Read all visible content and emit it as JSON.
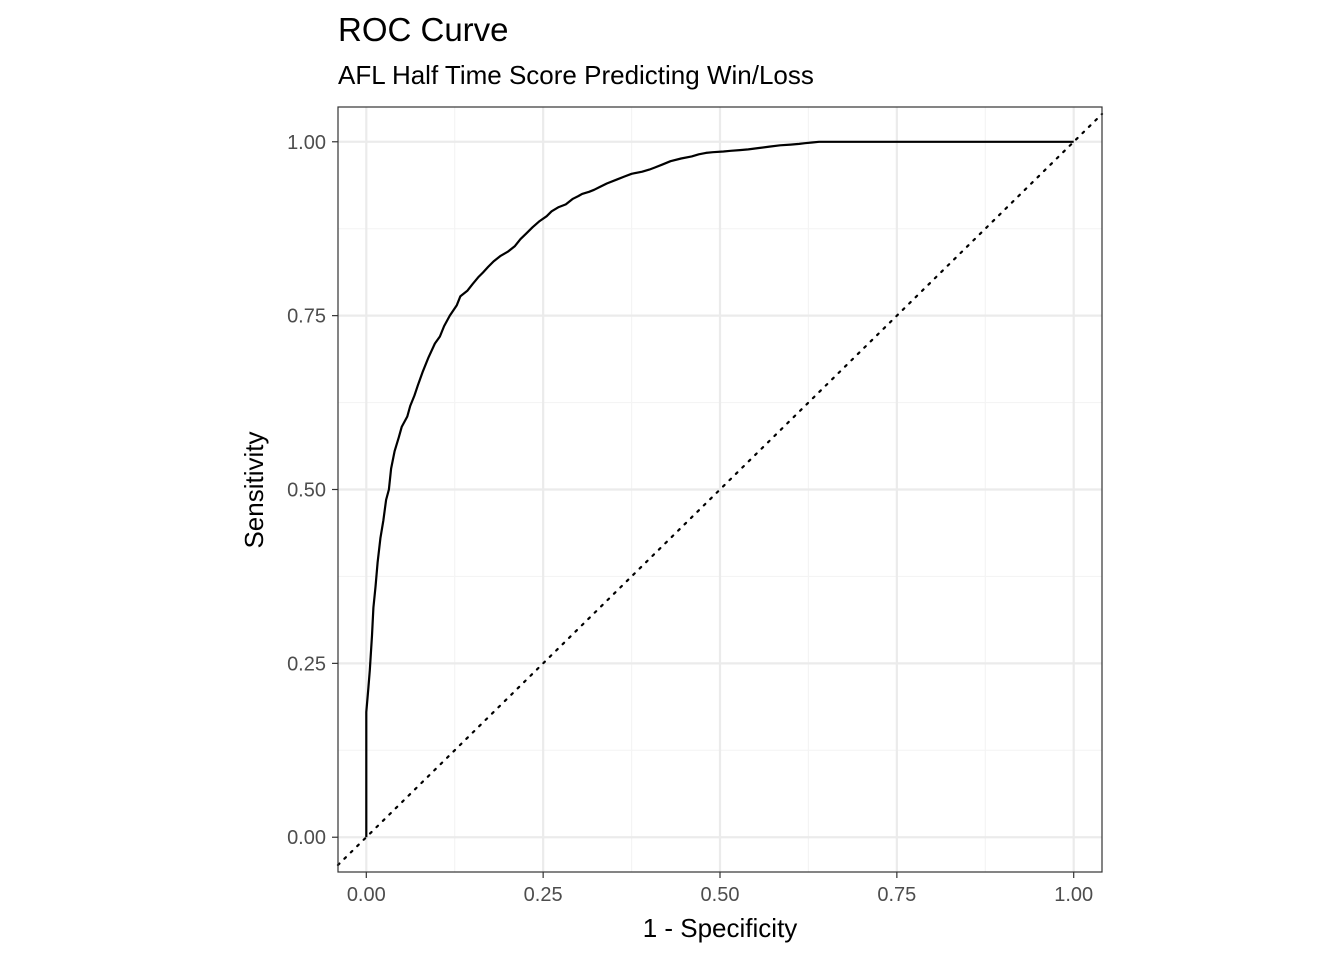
{
  "chart_data": {
    "type": "line",
    "title": "ROC Curve",
    "subtitle": "AFL Half Time Score Predicting Win/Loss",
    "xlabel": "1 - Specificity",
    "ylabel": "Sensitivity",
    "xlim": [
      -0.04,
      1.04
    ],
    "ylim": [
      -0.05,
      1.05
    ],
    "x_ticks": [
      "0.00",
      "0.25",
      "0.50",
      "0.75",
      "1.00"
    ],
    "y_ticks": [
      "0.00",
      "0.25",
      "0.50",
      "0.75",
      "1.00"
    ],
    "grid": true,
    "legend": "none",
    "series": [
      {
        "style": "solid",
        "color": "#000000",
        "x": [
          0.0,
          0.0,
          0.0,
          0.003,
          0.005,
          0.008,
          0.01,
          0.013,
          0.016,
          0.02,
          0.024,
          0.028,
          0.032,
          0.035,
          0.04,
          0.046,
          0.05,
          0.058,
          0.062,
          0.068,
          0.073,
          0.08,
          0.088,
          0.097,
          0.104,
          0.11,
          0.118,
          0.128,
          0.133,
          0.143,
          0.15,
          0.158,
          0.165,
          0.172,
          0.18,
          0.19,
          0.2,
          0.21,
          0.218,
          0.226,
          0.235,
          0.245,
          0.255,
          0.262,
          0.272,
          0.282,
          0.292,
          0.3,
          0.305,
          0.315,
          0.322,
          0.33,
          0.34,
          0.355,
          0.365,
          0.375,
          0.39,
          0.4,
          0.408,
          0.418,
          0.43,
          0.445,
          0.46,
          0.47,
          0.48,
          0.49,
          0.505,
          0.515,
          0.528,
          0.54,
          0.555,
          0.57,
          0.585,
          0.6,
          0.612,
          0.62,
          0.63,
          0.64,
          0.655,
          0.67,
          0.69,
          0.71,
          0.73,
          0.75,
          0.77,
          0.79,
          0.805,
          0.815,
          0.83,
          0.85,
          0.875,
          0.9,
          0.915,
          0.935,
          0.96,
          1.0
        ],
        "y": [
          0.0,
          0.11,
          0.18,
          0.215,
          0.24,
          0.29,
          0.33,
          0.36,
          0.395,
          0.43,
          0.455,
          0.485,
          0.5,
          0.53,
          0.555,
          0.575,
          0.59,
          0.605,
          0.62,
          0.635,
          0.65,
          0.67,
          0.69,
          0.71,
          0.72,
          0.735,
          0.75,
          0.765,
          0.778,
          0.786,
          0.795,
          0.805,
          0.812,
          0.82,
          0.828,
          0.836,
          0.842,
          0.85,
          0.86,
          0.868,
          0.877,
          0.886,
          0.893,
          0.9,
          0.906,
          0.91,
          0.918,
          0.922,
          0.925,
          0.928,
          0.931,
          0.935,
          0.94,
          0.946,
          0.95,
          0.954,
          0.957,
          0.96,
          0.963,
          0.967,
          0.972,
          0.976,
          0.979,
          0.982,
          0.984,
          0.985,
          0.986,
          0.987,
          0.988,
          0.989,
          0.991,
          0.993,
          0.995,
          0.996,
          0.997,
          0.998,
          0.999,
          1.0,
          1.0,
          1.0,
          1.0,
          1.0,
          1.0,
          1.0,
          1.0,
          1.0,
          1.0,
          1.0,
          1.0,
          1.0,
          1.0,
          1.0,
          1.0,
          1.0,
          1.0,
          1.0
        ]
      },
      {
        "style": "dotted",
        "color": "#000000",
        "x": [
          -0.04,
          1.04
        ],
        "y": [
          -0.04,
          1.04
        ]
      }
    ],
    "colors": {
      "grid_major": "#ebebeb",
      "grid_minor": "#f4f4f4",
      "panel_border": "#333333",
      "tick_label": "#4d4d4d"
    }
  }
}
